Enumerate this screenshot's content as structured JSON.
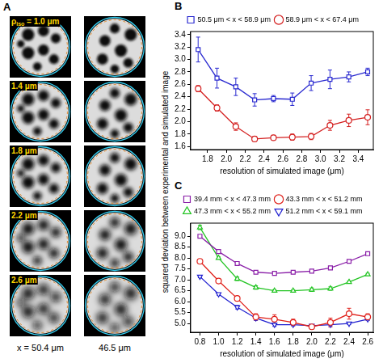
{
  "panel_a": {
    "letter": "A",
    "rho_label": {
      "symbol": "ρ",
      "subscript": "iso",
      "relation": "="
    },
    "resolutions": [
      {
        "value": 1.0,
        "label": "1.0 μm"
      },
      {
        "value": 1.4,
        "label": "1.4 μm"
      },
      {
        "value": 1.8,
        "label": "1.8 μm"
      },
      {
        "value": 2.2,
        "label": "2.2 μm"
      },
      {
        "value": 2.6,
        "label": "2.6 μm"
      }
    ],
    "columns": [
      "x = 50.4 μm",
      "46.5 μm"
    ]
  },
  "shared_y_label": "squared deviation between experimental and simulated image",
  "chart_data": [
    {
      "panel": "B",
      "type": "line",
      "x_label": "resolution of simulated image (μm)",
      "x": [
        1.7,
        1.9,
        2.1,
        2.3,
        2.5,
        2.7,
        2.9,
        3.1,
        3.3,
        3.5
      ],
      "xlim": [
        1.62,
        3.56
      ],
      "xticks": [
        1.8,
        {
          "value": 2,
          "label": "2.0"
        },
        2.2,
        2.4,
        2.6,
        2.8,
        {
          "value": 3,
          "label": "3.0"
        },
        3.2,
        3.4
      ],
      "ylim": [
        1.55,
        3.45
      ],
      "yticks": [
        1.6,
        1.8,
        {
          "value": 2,
          "label": "2.0"
        },
        2.2,
        2.4,
        2.6,
        2.8,
        {
          "value": 3,
          "label": "3.0"
        },
        3.2,
        3.4
      ],
      "grid": false,
      "legend": "top",
      "series": [
        {
          "name": "50.5 μm < x < 58.9 μm",
          "color": "#2a2ad0",
          "marker": "square",
          "values": [
            3.16,
            2.7,
            2.56,
            2.35,
            2.37,
            2.36,
            2.62,
            2.68,
            2.72,
            2.8
          ],
          "errors": [
            0.2,
            0.16,
            0.14,
            0.1,
            0.05,
            0.1,
            0.12,
            0.15,
            0.08,
            0.06
          ]
        },
        {
          "name": "58.9 μm < x < 67.4 μm",
          "color": "#d42020",
          "marker": "circle",
          "values": [
            2.53,
            2.22,
            1.92,
            1.72,
            1.74,
            1.75,
            1.76,
            1.94,
            2.02,
            2.07
          ],
          "errors": [
            0.05,
            0.05,
            0.06,
            0.04,
            0.04,
            0.05,
            0.05,
            0.08,
            0.1,
            0.12
          ]
        }
      ]
    },
    {
      "panel": "C",
      "type": "line",
      "x_label": "resolution of simulated image (μm)",
      "x": [
        0.8,
        1.0,
        1.2,
        1.4,
        1.6,
        1.8,
        2.0,
        2.2,
        2.4,
        2.6
      ],
      "xlim": [
        0.7,
        2.66
      ],
      "xticks": [
        0.8,
        {
          "value": 1,
          "label": "1.0"
        },
        1.2,
        1.4,
        1.6,
        1.8,
        {
          "value": 2,
          "label": "2.0"
        },
        2.2,
        2.4,
        2.6
      ],
      "ylim": [
        4.6,
        9.6
      ],
      "yticks": [
        {
          "value": 5,
          "label": "5.0"
        },
        5.5,
        {
          "value": 6,
          "label": "6.0"
        },
        6.5,
        {
          "value": 7,
          "label": "7.0"
        },
        7.5,
        {
          "value": 8,
          "label": "8.0"
        },
        8.5,
        {
          "value": 9,
          "label": "9.0"
        }
      ],
      "grid": false,
      "legend": "top",
      "series": [
        {
          "name": "39.4 mm < x < 47.3 mm",
          "color": "#8a1fa8",
          "marker": "square",
          "values": [
            9.0,
            8.3,
            7.75,
            7.35,
            7.3,
            7.35,
            7.4,
            7.55,
            7.85,
            8.2
          ],
          "errors": [
            0.05,
            0.05,
            0.05,
            0.05,
            0.05,
            0.05,
            0.05,
            0.05,
            0.05,
            0.05
          ]
        },
        {
          "name": "43.3 mm < x < 51.2 mm",
          "color": "#e0201a",
          "marker": "circle",
          "values": [
            7.85,
            6.95,
            6.15,
            5.3,
            5.2,
            5.05,
            4.85,
            5.05,
            5.45,
            5.3
          ],
          "errors": [
            0.08,
            0.08,
            0.1,
            0.15,
            0.2,
            0.15,
            0.1,
            0.2,
            0.25,
            0.15
          ]
        },
        {
          "name": "47.3 mm < x < 55.2 mm",
          "color": "#22c422",
          "marker": "triangle-up",
          "values": [
            9.4,
            8.0,
            7.05,
            6.65,
            6.5,
            6.5,
            6.55,
            6.6,
            6.9,
            7.25
          ],
          "errors": [
            0.1,
            0.05,
            0.08,
            0.08,
            0.05,
            0.05,
            0.08,
            0.08,
            0.05,
            0.05
          ]
        },
        {
          "name": "51.2 mm < x < 59.1 mm",
          "color": "#2020d0",
          "marker": "triangle-down",
          "values": [
            7.15,
            6.35,
            5.75,
            5.25,
            4.95,
            4.95,
            4.9,
            4.95,
            5.0,
            5.2
          ],
          "errors": [
            0.05,
            0.05,
            0.08,
            0.1,
            0.08,
            0.05,
            0.05,
            0.05,
            0.05,
            0.05
          ]
        }
      ]
    }
  ]
}
